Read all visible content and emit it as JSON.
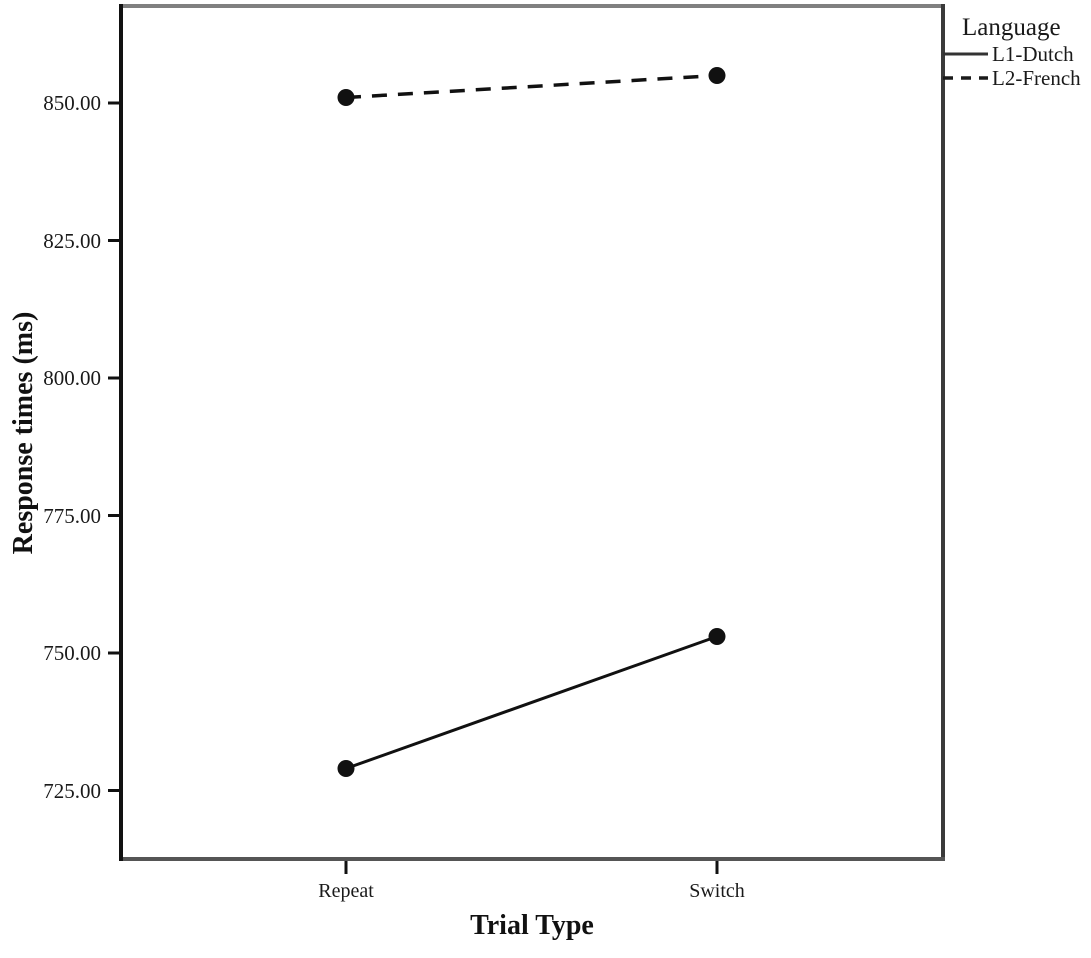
{
  "figure": {
    "background": "#ffffff",
    "ink_color": "#111111",
    "frame_top_color": "#808080",
    "frame_side_color": "#3a3a3a",
    "frame_bottom_color": "#555555",
    "axis_color": "#111111"
  },
  "chart_data": {
    "type": "line",
    "title": "",
    "xlabel": "Trial Type",
    "ylabel": "Response times (ms)",
    "categories": [
      "Repeat",
      "Switch"
    ],
    "series": [
      {
        "name": "L1-Dutch",
        "line_style": "solid",
        "marker": "filled-circle",
        "color": "#111111",
        "values": [
          729,
          753
        ]
      },
      {
        "name": "L2-French",
        "line_style": "dashed",
        "marker": "filled-circle",
        "color": "#111111",
        "values": [
          851,
          855
        ]
      }
    ],
    "y_ticks": [
      {
        "value": 725,
        "label": "725.00"
      },
      {
        "value": 750,
        "label": "750.00"
      },
      {
        "value": 775,
        "label": "775.00"
      },
      {
        "value": 800,
        "label": "800.00"
      },
      {
        "value": 825,
        "label": "825.00"
      },
      {
        "value": 850,
        "label": "850.00"
      }
    ],
    "ylim": [
      712.5,
      867.8
    ],
    "grid": false,
    "legend": {
      "title": "Language",
      "position": "top-right-outside",
      "entries": [
        "L1-Dutch",
        "L2-French"
      ]
    }
  }
}
